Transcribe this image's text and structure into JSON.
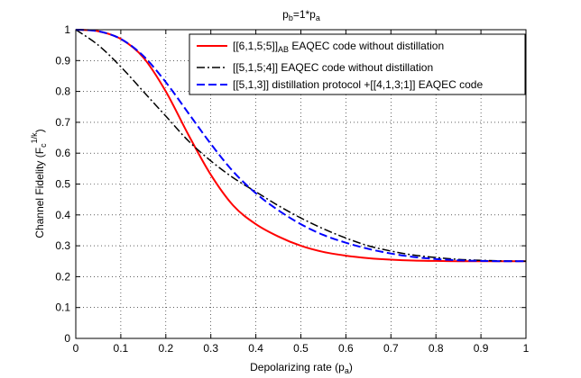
{
  "chart_data": {
    "type": "line",
    "title": {
      "main": "p",
      "main_sub": "b",
      "mid": "=1*p",
      "mid_sub": "a"
    },
    "xlabel": {
      "main": "Depolarizing rate (p",
      "sub": "a",
      "close": ")"
    },
    "ylabel": {
      "main": "Channel Fidelity (F",
      "sub": "c",
      "sup": "1/k",
      "close": ")"
    },
    "xlim": [
      0,
      1
    ],
    "ylim": [
      0,
      1
    ],
    "xticks": [
      0,
      0.1,
      0.2,
      0.3,
      0.4,
      0.5,
      0.6,
      0.7,
      0.8,
      0.9,
      1
    ],
    "yticks": [
      0,
      0.1,
      0.2,
      0.3,
      0.4,
      0.5,
      0.6,
      0.7,
      0.8,
      0.9,
      1
    ],
    "xtick_labels": [
      "0",
      "0.1",
      "0.2",
      "0.3",
      "0.4",
      "0.5",
      "0.6",
      "0.7",
      "0.8",
      "0.9",
      "1"
    ],
    "ytick_labels": [
      "0",
      "0.1",
      "0.2",
      "0.3",
      "0.4",
      "0.5",
      "0.6",
      "0.7",
      "0.8",
      "0.9",
      "1"
    ],
    "grid": true,
    "legend_position": "top-right",
    "series": [
      {
        "name": "[[6,1,5;5]]AB EAQEC code without distillation",
        "legend": {
          "pre": "[[6,1,5;5]]",
          "sub": "AB",
          "post": " EAQEC code without distillation"
        },
        "color": "#ff0000",
        "style": "solid",
        "x": [
          0,
          0.05,
          0.1,
          0.15,
          0.2,
          0.25,
          0.3,
          0.35,
          0.4,
          0.45,
          0.5,
          0.55,
          0.6,
          0.65,
          0.7,
          0.75,
          0.8,
          0.85,
          0.9,
          0.95,
          1
        ],
        "y": [
          1.0,
          0.995,
          0.97,
          0.91,
          0.8,
          0.66,
          0.53,
          0.43,
          0.37,
          0.33,
          0.3,
          0.28,
          0.268,
          0.26,
          0.255,
          0.252,
          0.251,
          0.25,
          0.25,
          0.25,
          0.25
        ]
      },
      {
        "name": "[[5,1,5;4]] EAQEC code without distillation",
        "legend": {
          "pre": "[[5,1,5;4]] EAQEC code without distillation",
          "sub": "",
          "post": ""
        },
        "color": "#000000",
        "style": "dashdot",
        "x": [
          0,
          0.05,
          0.1,
          0.15,
          0.2,
          0.25,
          0.3,
          0.35,
          0.4,
          0.45,
          0.5,
          0.55,
          0.6,
          0.65,
          0.7,
          0.75,
          0.8,
          0.85,
          0.9,
          0.95,
          1
        ],
        "y": [
          1.0,
          0.95,
          0.88,
          0.8,
          0.72,
          0.64,
          0.575,
          0.52,
          0.475,
          0.43,
          0.39,
          0.355,
          0.325,
          0.3,
          0.283,
          0.27,
          0.262,
          0.256,
          0.253,
          0.251,
          0.25
        ]
      },
      {
        "name": "[[5,1,3]] distillation protocol +[[4,1,3;1]] EAQEC code",
        "legend": {
          "pre": "[[5,1,3]] distillation protocol +[[4,1,3;1]] EAQEC code",
          "sub": "",
          "post": ""
        },
        "color": "#0000ff",
        "style": "dashed",
        "x": [
          0,
          0.05,
          0.1,
          0.15,
          0.2,
          0.25,
          0.3,
          0.35,
          0.4,
          0.45,
          0.5,
          0.55,
          0.6,
          0.65,
          0.7,
          0.75,
          0.8,
          0.85,
          0.9,
          0.95,
          1
        ],
        "y": [
          1.0,
          0.995,
          0.97,
          0.915,
          0.83,
          0.73,
          0.63,
          0.54,
          0.47,
          0.415,
          0.37,
          0.335,
          0.31,
          0.29,
          0.275,
          0.264,
          0.257,
          0.253,
          0.251,
          0.25,
          0.25
        ]
      }
    ]
  }
}
